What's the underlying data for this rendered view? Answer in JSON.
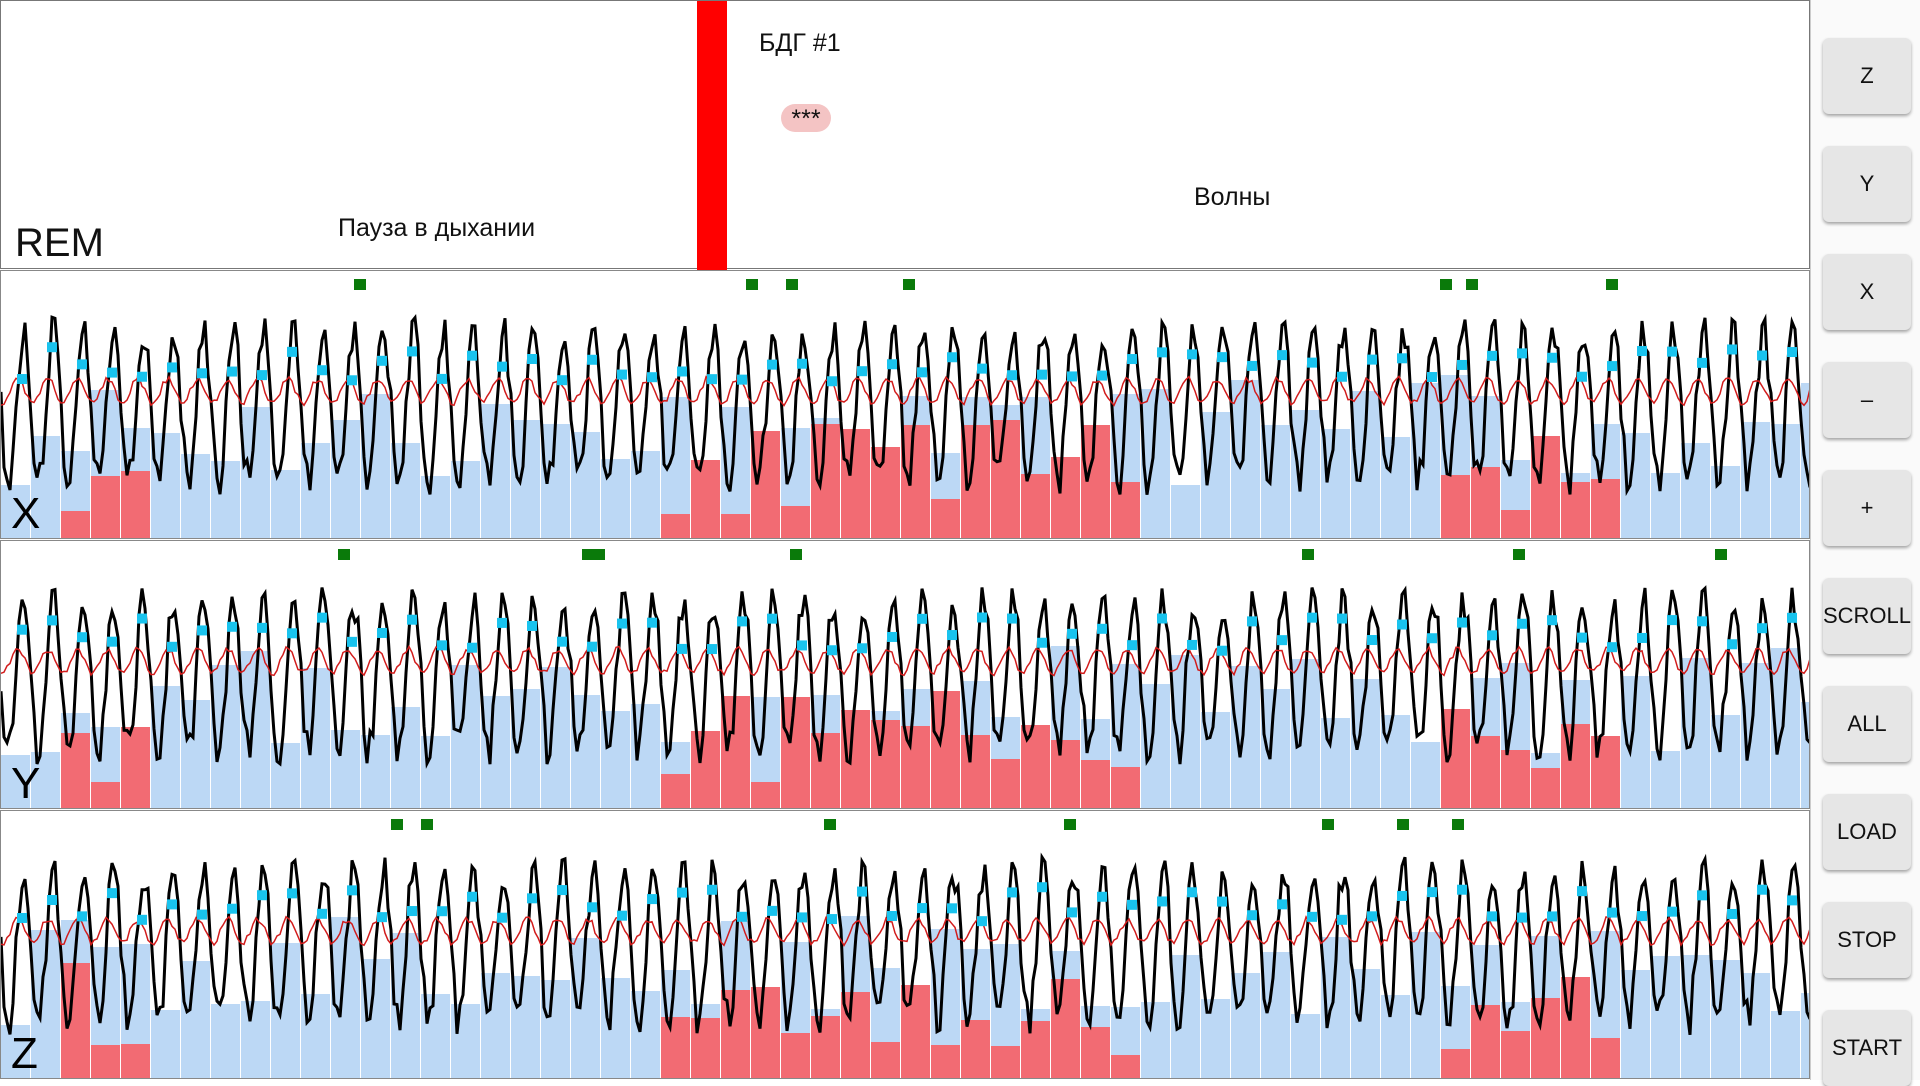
{
  "header": {
    "stage": "REM",
    "device": "БДГ #1",
    "badge": "***",
    "event_pause": "Пауза в дыхании",
    "event_waves": "Волны",
    "marker_color": "#ff0000"
  },
  "panels": [
    {
      "axis": "X"
    },
    {
      "axis": "Y"
    },
    {
      "axis": "Z"
    }
  ],
  "sidebar": {
    "buttons": [
      "Z",
      "Y",
      "X",
      "–",
      "+",
      "SCROLL",
      "ALL",
      "LOAD",
      "STOP",
      "START"
    ]
  },
  "colors": {
    "signal": "#000000",
    "smoothed": "#d21c1c",
    "peak_marker": "#19c3ee",
    "event_marker": "#0a7a0a",
    "bar_low": "#bcd8f5",
    "bar_high": "#f26b73"
  }
}
